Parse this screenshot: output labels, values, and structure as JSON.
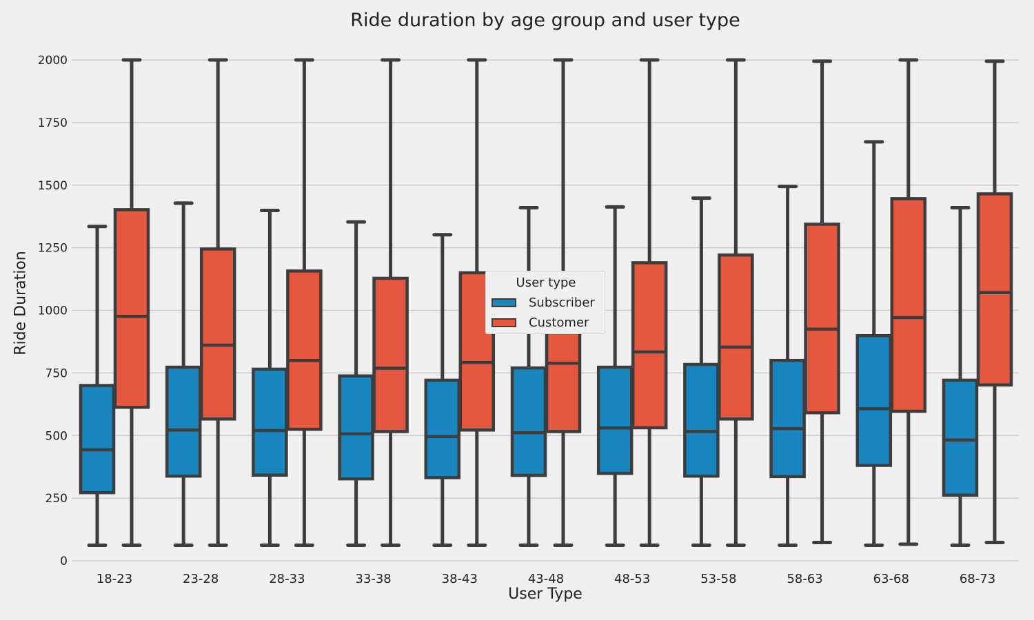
{
  "chart_data": {
    "type": "box",
    "title": "Ride duration by age group and user type",
    "xlabel": "User Type",
    "ylabel": "Ride Duration",
    "ylim": [
      0,
      2000
    ],
    "yticks": [
      0,
      250,
      500,
      750,
      1000,
      1250,
      1500,
      1750,
      2000
    ],
    "grid": "horizontal",
    "legend": {
      "title": "User type",
      "placement": "center"
    },
    "categories": [
      "18-23",
      "23-28",
      "28-33",
      "33-38",
      "38-43",
      "43-48",
      "48-53",
      "53-58",
      "58-63",
      "63-68",
      "68-73"
    ],
    "series": [
      {
        "name": "Subscriber",
        "color": "#1a86c0",
        "boxes": [
          {
            "min": 62,
            "q1": 272,
            "median": 443,
            "q3": 700,
            "max": 1335
          },
          {
            "min": 62,
            "q1": 338,
            "median": 522,
            "q3": 773,
            "max": 1428
          },
          {
            "min": 62,
            "q1": 342,
            "median": 520,
            "q3": 765,
            "max": 1399
          },
          {
            "min": 62,
            "q1": 327,
            "median": 507,
            "q3": 738,
            "max": 1353
          },
          {
            "min": 62,
            "q1": 332,
            "median": 496,
            "q3": 721,
            "max": 1302
          },
          {
            "min": 62,
            "q1": 341,
            "median": 511,
            "q3": 770,
            "max": 1410
          },
          {
            "min": 62,
            "q1": 349,
            "median": 530,
            "q3": 773,
            "max": 1413
          },
          {
            "min": 62,
            "q1": 338,
            "median": 516,
            "q3": 784,
            "max": 1448
          },
          {
            "min": 62,
            "q1": 336,
            "median": 528,
            "q3": 800,
            "max": 1495
          },
          {
            "min": 62,
            "q1": 381,
            "median": 607,
            "q3": 899,
            "max": 1673
          },
          {
            "min": 62,
            "q1": 262,
            "median": 482,
            "q3": 721,
            "max": 1410
          }
        ]
      },
      {
        "name": "Customer",
        "color": "#e5573e",
        "boxes": [
          {
            "min": 62,
            "q1": 613,
            "median": 976,
            "q3": 1402,
            "max": 2000
          },
          {
            "min": 62,
            "q1": 566,
            "median": 861,
            "q3": 1245,
            "max": 2000
          },
          {
            "min": 62,
            "q1": 525,
            "median": 800,
            "q3": 1157,
            "max": 2000
          },
          {
            "min": 62,
            "q1": 516,
            "median": 769,
            "q3": 1128,
            "max": 2000
          },
          {
            "min": 62,
            "q1": 522,
            "median": 792,
            "q3": 1150,
            "max": 2000
          },
          {
            "min": 62,
            "q1": 516,
            "median": 789,
            "q3": 1150,
            "max": 2000
          },
          {
            "min": 62,
            "q1": 531,
            "median": 834,
            "q3": 1190,
            "max": 2000
          },
          {
            "min": 62,
            "q1": 566,
            "median": 853,
            "q3": 1221,
            "max": 2000
          },
          {
            "min": 73,
            "q1": 591,
            "median": 925,
            "q3": 1344,
            "max": 1995
          },
          {
            "min": 66,
            "q1": 597,
            "median": 971,
            "q3": 1446,
            "max": 2000
          },
          {
            "min": 73,
            "q1": 702,
            "median": 1071,
            "q3": 1465,
            "max": 1995
          }
        ]
      }
    ]
  }
}
